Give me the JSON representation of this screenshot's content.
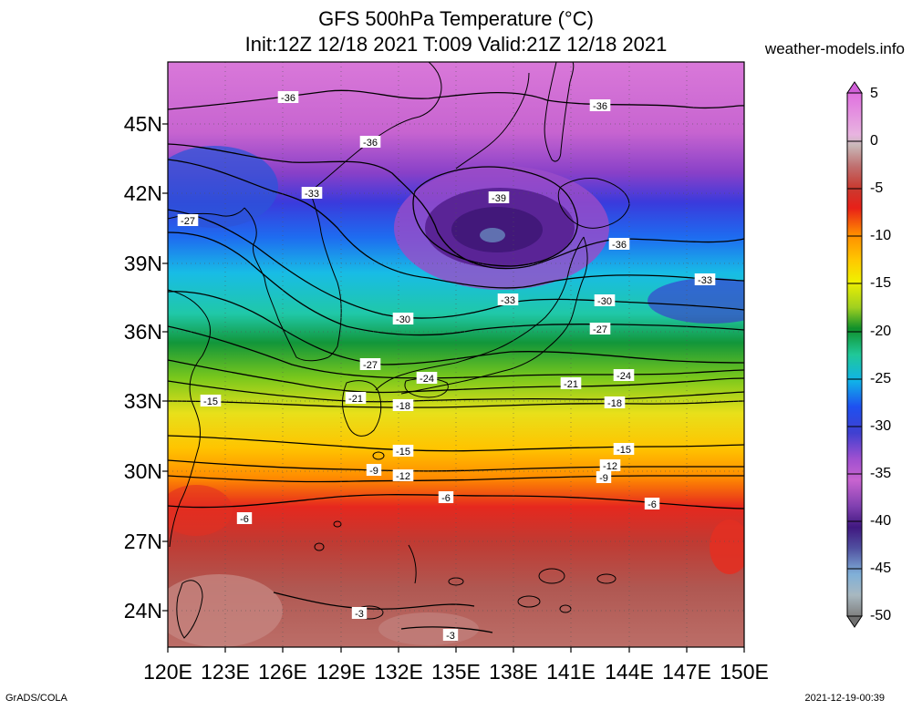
{
  "header": {
    "title_line1": "GFS 500hPa Temperature (°C)",
    "title_line2": "Init:12Z 12/18 2021 T:009 Valid:21Z 12/18 2021",
    "site": "weather-models.info"
  },
  "axes": {
    "lat_labels": [
      "45N",
      "42N",
      "39N",
      "36N",
      "33N",
      "30N",
      "27N",
      "24N"
    ],
    "lon_labels": [
      "120E",
      "123E",
      "126E",
      "129E",
      "132E",
      "135E",
      "138E",
      "141E",
      "144E",
      "147E",
      "150E"
    ]
  },
  "colorbar": {
    "labels": [
      "5",
      "0",
      "-5",
      "-10",
      "-15",
      "-20",
      "-25",
      "-30",
      "-35",
      "-40",
      "-45",
      "-50"
    ]
  },
  "footer": {
    "left": "GrADS/COLA",
    "right": "2021-12-19-00:39"
  },
  "contour_labels": [
    {
      "text": "-36"
    },
    {
      "text": "-36"
    },
    {
      "text": "-36"
    },
    {
      "text": "-39"
    },
    {
      "text": "-36"
    },
    {
      "text": "-33"
    },
    {
      "text": "-27"
    },
    {
      "text": "-33"
    },
    {
      "text": "-33"
    },
    {
      "text": "-30"
    },
    {
      "text": "-30"
    },
    {
      "text": "-27"
    },
    {
      "text": "-27"
    },
    {
      "text": "-24"
    },
    {
      "text": "-24"
    },
    {
      "text": "-21"
    },
    {
      "text": "-21"
    },
    {
      "text": "-18"
    },
    {
      "text": "-18"
    },
    {
      "text": "-15"
    },
    {
      "text": "-15"
    },
    {
      "text": "-15"
    },
    {
      "text": "-9"
    },
    {
      "text": "-12"
    },
    {
      "text": "-12"
    },
    {
      "text": "-9"
    },
    {
      "text": "-6"
    },
    {
      "text": "-6"
    },
    {
      "text": "-6"
    },
    {
      "text": "-3"
    },
    {
      "text": "-3"
    }
  ]
}
